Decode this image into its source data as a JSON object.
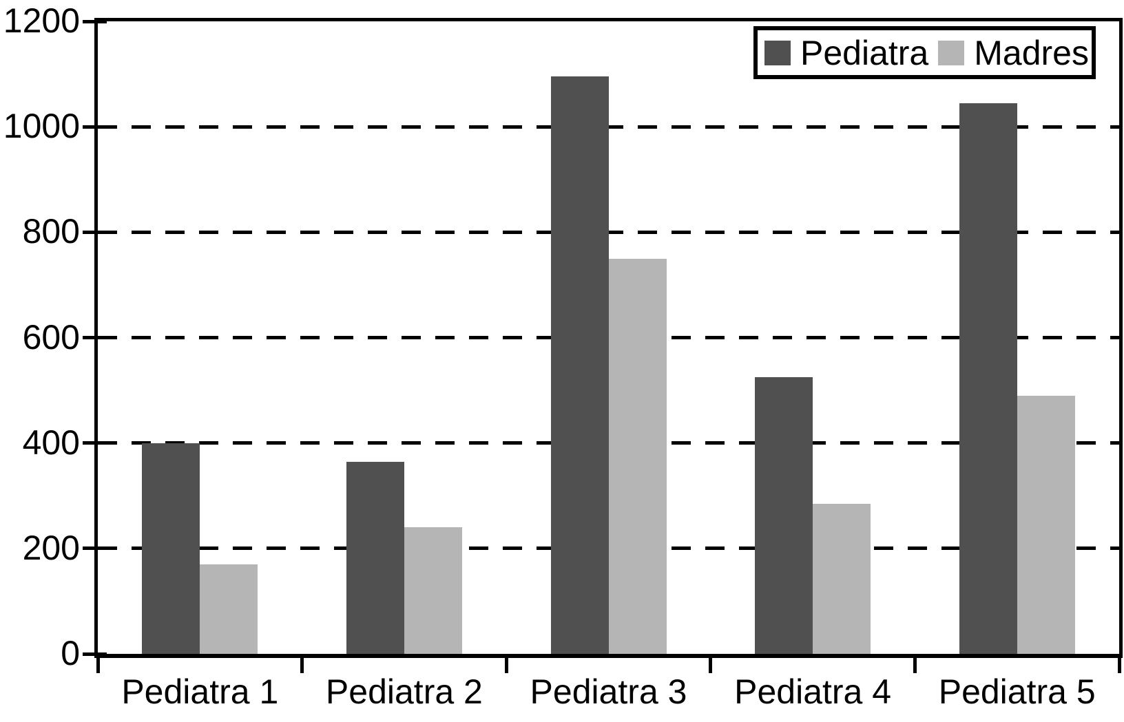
{
  "chart_data": {
    "type": "bar",
    "title": "",
    "categories": [
      "Pediatra 1",
      "Pediatra 2",
      "Pediatra 3",
      "Pediatra 4",
      "Pediatra 5"
    ],
    "series": [
      {
        "name": "Pediatra",
        "color": "#505050",
        "values": [
          400,
          365,
          1095,
          525,
          1045
        ]
      },
      {
        "name": "Madres",
        "color": "#b5b5b5",
        "values": [
          170,
          240,
          750,
          285,
          490
        ]
      }
    ],
    "xlabel": "",
    "ylabel": "",
    "ylim": [
      0,
      1200
    ],
    "yticks": [
      0,
      200,
      400,
      600,
      800,
      1000,
      1200
    ],
    "grid": "horizontal-dashed",
    "legend_position": "top-right"
  },
  "legend": {
    "items": [
      {
        "label": "Pediatra",
        "swatch_color": "#505050"
      },
      {
        "label": "Madres",
        "swatch_color": "#b5b5b5"
      }
    ]
  },
  "colors": {
    "background": "#ffffff",
    "axis": "#000000",
    "text": "#000000",
    "series_pediatra": "#505050",
    "series_madres": "#b5b5b5"
  }
}
